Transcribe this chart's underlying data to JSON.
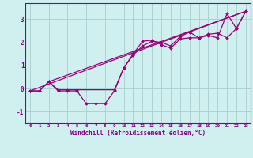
{
  "xlabel": "Windchill (Refroidissement éolien,°C)",
  "background_color": "#d0f0f0",
  "grid_color": "#a8cece",
  "line_color": "#990077",
  "xlim": [
    -0.5,
    23.5
  ],
  "ylim": [
    -1.5,
    3.7
  ],
  "xticks": [
    0,
    1,
    2,
    3,
    4,
    5,
    6,
    7,
    8,
    9,
    10,
    11,
    12,
    13,
    14,
    15,
    16,
    17,
    18,
    19,
    20,
    21,
    22,
    23
  ],
  "yticks": [
    -1,
    0,
    1,
    2,
    3
  ],
  "line1_x": [
    0,
    1,
    2,
    3,
    4,
    5,
    6,
    7,
    8,
    9,
    10,
    11,
    12,
    13,
    14,
    15,
    16,
    17,
    18,
    19,
    20,
    21,
    22,
    23
  ],
  "line1_y": [
    -0.1,
    -0.1,
    0.3,
    -0.1,
    -0.1,
    -0.1,
    -0.65,
    -0.65,
    -0.65,
    -0.1,
    0.9,
    1.5,
    2.05,
    2.1,
    1.9,
    1.75,
    2.15,
    2.2,
    2.2,
    2.3,
    2.2,
    3.25,
    2.6,
    3.35
  ],
  "line2_x": [
    0,
    1,
    2,
    3,
    4,
    5,
    9,
    10,
    11,
    12,
    13,
    14,
    15,
    16,
    17,
    18,
    19,
    20,
    21,
    22,
    23
  ],
  "line2_y": [
    -0.1,
    -0.1,
    0.3,
    -0.05,
    -0.05,
    -0.05,
    -0.05,
    0.9,
    1.45,
    1.85,
    2.05,
    2.0,
    1.85,
    2.25,
    2.45,
    2.2,
    2.35,
    2.4,
    2.2,
    2.6,
    3.35
  ],
  "trend1_x": [
    0,
    23
  ],
  "trend1_y": [
    -0.1,
    3.35
  ],
  "trend2_x": [
    2,
    23
  ],
  "trend2_y": [
    0.3,
    3.35
  ]
}
